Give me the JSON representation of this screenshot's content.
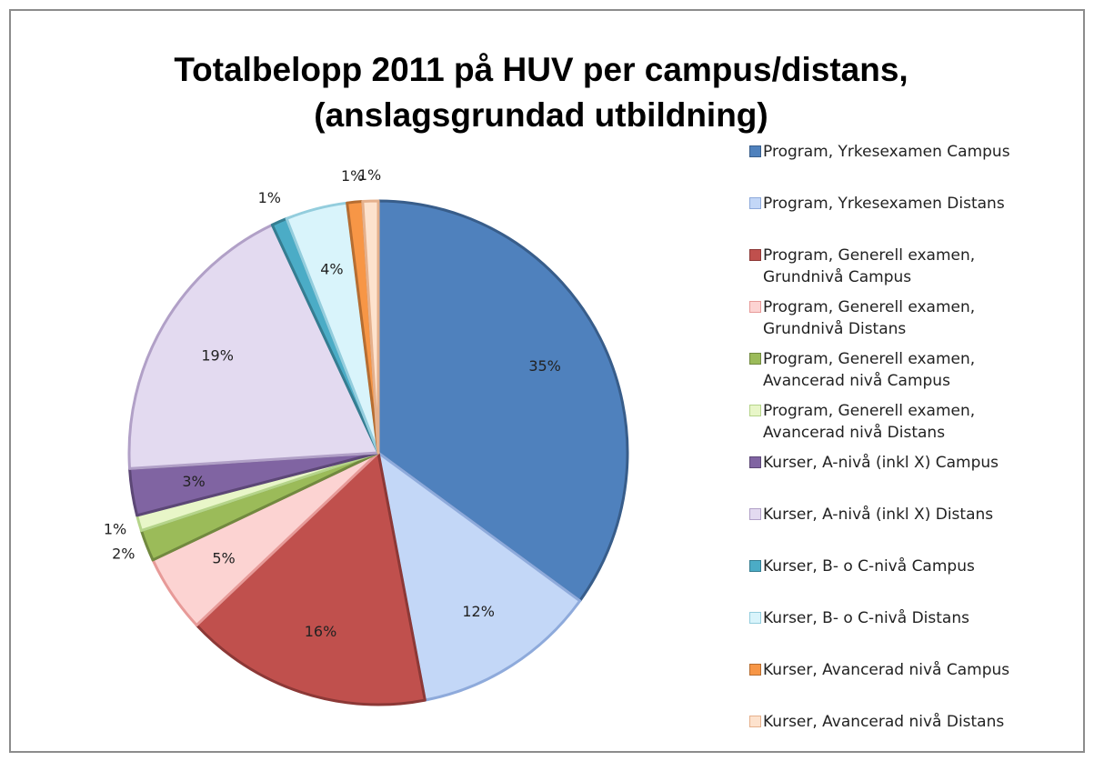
{
  "chart_data": {
    "type": "pie",
    "title": "Totalbelopp 2011 på HUV per campus/distans,\n(anslagsgrundad utbildning)",
    "categories": [
      "Program, Yrkesexamen Campus",
      "Program, Yrkesexamen Distans",
      "Program, Generell examen,\nGrundnivå Campus",
      "Program, Generell examen,\nGrundnivå Distans",
      "Program, Generell examen,\nAvancerad nivå Campus",
      "Program, Generell examen,\nAvancerad nivå Distans",
      "Kurser, A-nivå (inkl X) Campus",
      "Kurser, A-nivå (inkl X) Distans",
      "Kurser, B- o C-nivå Campus",
      "Kurser, B- o C-nivå Distans",
      "Kurser, Avancerad nivå Campus",
      "Kurser, Avancerad nivå Distans"
    ],
    "values": [
      35,
      12,
      16,
      5,
      2,
      1,
      3,
      19,
      1,
      4,
      1,
      1
    ],
    "value_labels": [
      "35%",
      "12%",
      "16%",
      "5%",
      "2%",
      "1%",
      "3%",
      "19%",
      "1%",
      "4%",
      "1%",
      "1%"
    ],
    "colors": [
      "#4f81bd",
      "#c3d7f7",
      "#c0504d",
      "#fcd3d2",
      "#9bbb59",
      "#e8f6c8",
      "#8064a2",
      "#e3daf0",
      "#4bacc6",
      "#d9f4fb",
      "#f79646",
      "#fde2cd"
    ],
    "border_colors": [
      "#385d8a",
      "#8eaadb",
      "#8c3836",
      "#e79a98",
      "#71893f",
      "#b5d48a",
      "#5c4776",
      "#b1a0c7",
      "#357d91",
      "#93cddd",
      "#b66d31",
      "#e5b08c"
    ],
    "legend": "right"
  }
}
